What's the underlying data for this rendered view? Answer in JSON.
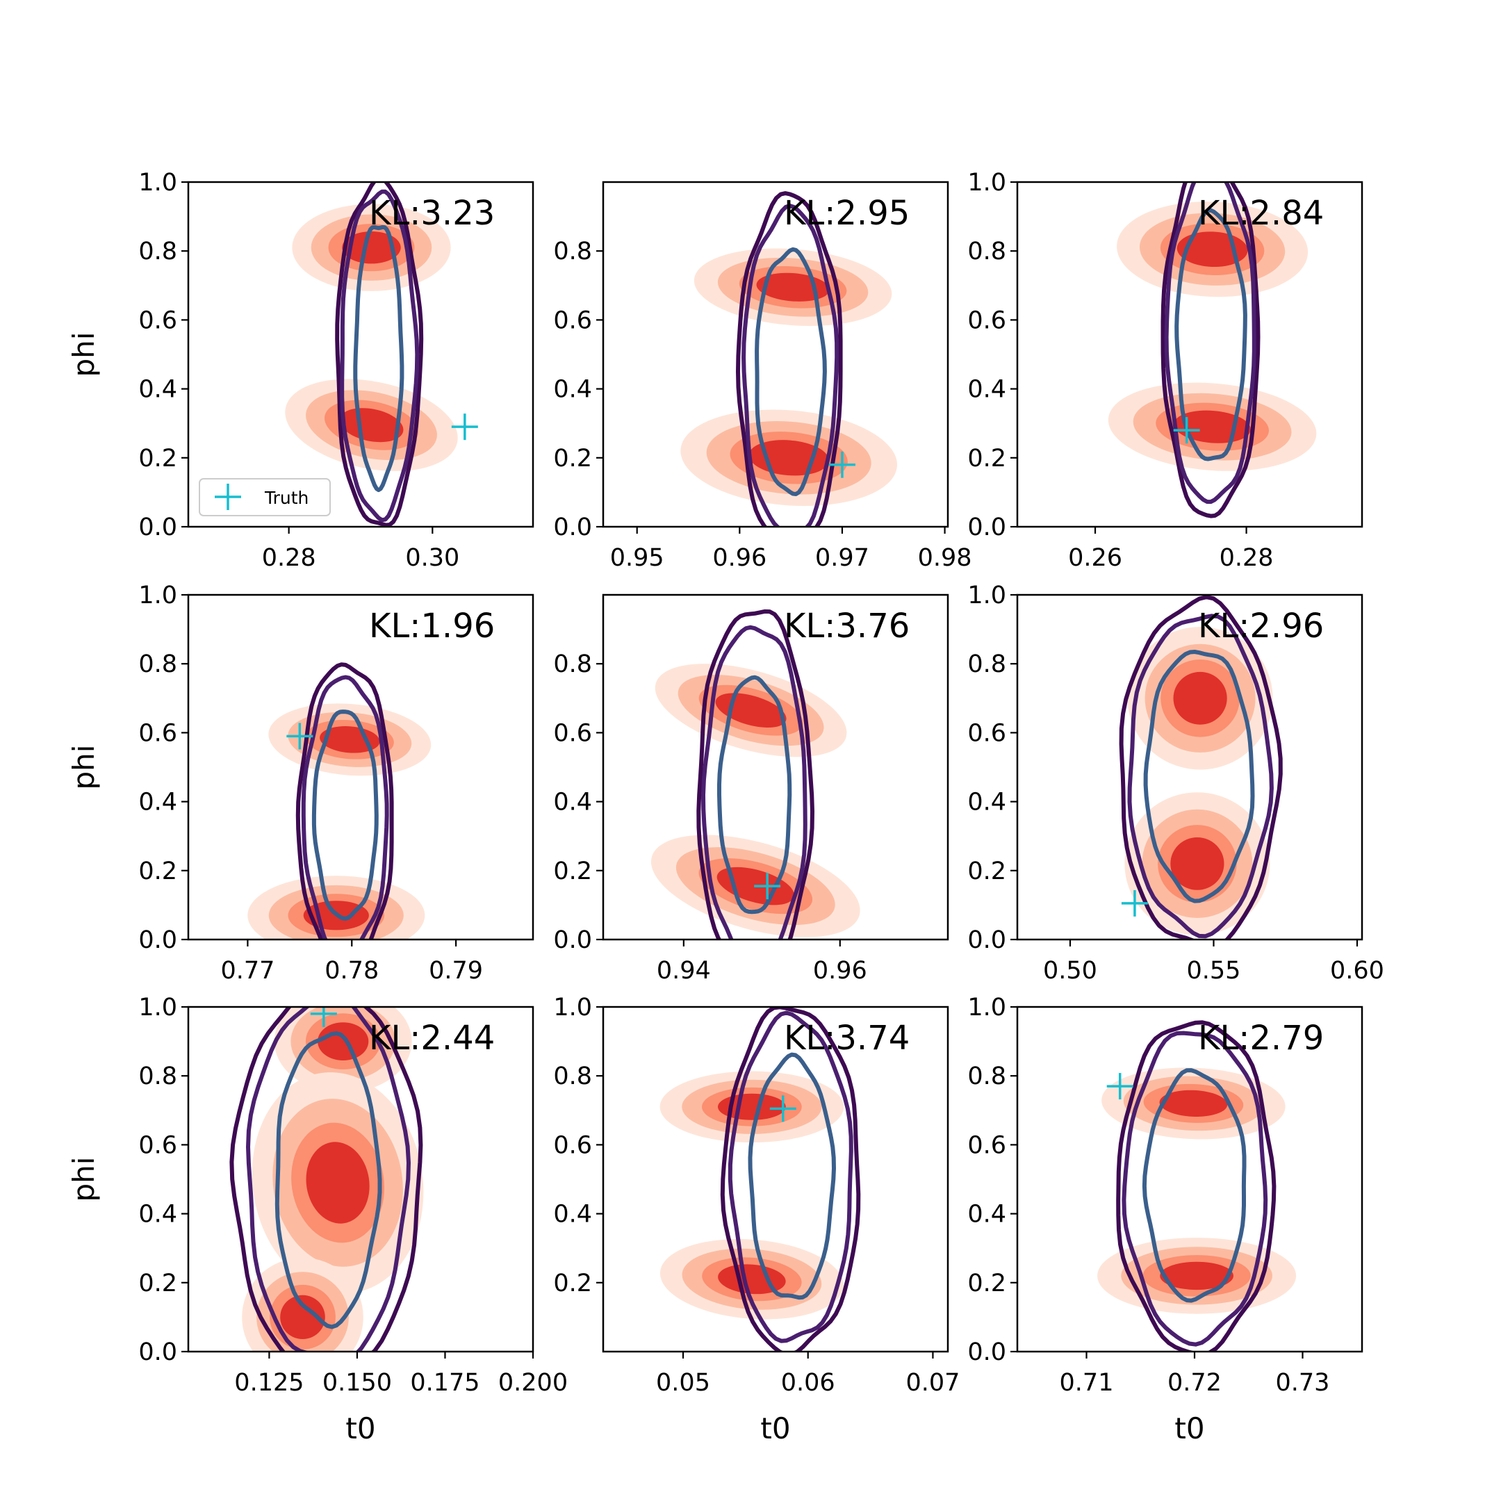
{
  "colors": {
    "kde_fill_levels": [
      "#fee4d8",
      "#fcbba1",
      "#fb8f70",
      "#e0302a"
    ],
    "contour_outer": "#3d0a52",
    "contour_middle": "#4a1f6f",
    "contour_inner": "#3a5f8c",
    "truth_marker": "#17becf"
  },
  "legend": {
    "label": "Truth",
    "marker": "plus"
  },
  "chart_data": [
    {
      "type": "contour",
      "title": "KL:3.23",
      "xlabel": "",
      "ylabel": "phi",
      "xlim": [
        0.266,
        0.314
      ],
      "ylim": [
        0,
        1
      ],
      "xticks": [
        0.28,
        0.3
      ],
      "xtick_labels": [
        "0.28",
        "0.30"
      ],
      "yticks": [
        0,
        0.2,
        0.4,
        0.6,
        0.8,
        1.0
      ],
      "ytick_labels": [
        "0.0",
        "0.2",
        "0.4",
        "0.6",
        "0.8",
        "1.0"
      ],
      "kde_modes": [
        {
          "x": 0.2915,
          "y": 0.81,
          "sx": 0.0048,
          "sy": 0.055,
          "tilt": 0.0
        },
        {
          "x": 0.2915,
          "y": 0.295,
          "sx": 0.0053,
          "sy": 0.055,
          "tilt": -0.25
        }
      ],
      "contour_center": [
        0.2925,
        0.5
      ],
      "contour_halfwidths": [
        0.0032,
        0.0052,
        0.0058
      ],
      "contour_halfheights": [
        0.38,
        0.47,
        0.5
      ],
      "truth": {
        "x": 0.3045,
        "y": 0.29
      },
      "legend": true
    },
    {
      "type": "contour",
      "title": "KL:2.95",
      "xlabel": "",
      "ylabel": "",
      "xlim": [
        0.9467,
        0.9803
      ],
      "ylim": [
        0,
        1
      ],
      "xticks": [
        0.95,
        0.96,
        0.97,
        0.98
      ],
      "xtick_labels": [
        "0.95",
        "0.96",
        "0.97",
        "0.98"
      ],
      "yticks": [
        0,
        0.2,
        0.4,
        0.6,
        0.8
      ],
      "ytick_labels": [
        "0.0",
        "0.2",
        "0.4",
        "0.6",
        "0.8"
      ],
      "kde_modes": [
        {
          "x": 0.9652,
          "y": 0.695,
          "sx": 0.0042,
          "sy": 0.048,
          "tilt": -0.1
        },
        {
          "x": 0.9648,
          "y": 0.2,
          "sx": 0.0046,
          "sy": 0.06,
          "tilt": -0.1
        }
      ],
      "contour_center": [
        0.9649,
        0.45
      ],
      "contour_halfwidths": [
        0.0033,
        0.0045,
        0.005
      ],
      "contour_halfheights": [
        0.35,
        0.47,
        0.51
      ],
      "truth": {
        "x": 0.97,
        "y": 0.18
      },
      "legend": false
    },
    {
      "type": "contour",
      "title": "KL:2.84",
      "xlabel": "",
      "ylabel": "",
      "xlim": [
        0.2497,
        0.2953
      ],
      "ylim": [
        0,
        1
      ],
      "xticks": [
        0.26,
        0.28
      ],
      "xtick_labels": [
        "0.26",
        "0.28"
      ],
      "yticks": [
        0,
        0.2,
        0.4,
        0.6,
        0.8,
        1.0
      ],
      "ytick_labels": [
        "0.0",
        "0.2",
        "0.4",
        "0.6",
        "0.8",
        "1.0"
      ],
      "kde_modes": [
        {
          "x": 0.2755,
          "y": 0.805,
          "sx": 0.0055,
          "sy": 0.06,
          "tilt": -0.05
        },
        {
          "x": 0.2755,
          "y": 0.29,
          "sx": 0.006,
          "sy": 0.055,
          "tilt": -0.1
        }
      ],
      "contour_center": [
        0.2753,
        0.55
      ],
      "contour_halfwidths": [
        0.0045,
        0.0058,
        0.0063
      ],
      "contour_halfheights": [
        0.36,
        0.48,
        0.52
      ],
      "truth": {
        "x": 0.2721,
        "y": 0.28
      },
      "legend": false
    },
    {
      "type": "contour",
      "title": "KL:1.96",
      "xlabel": "",
      "ylabel": "phi",
      "xlim": [
        0.7643,
        0.7974
      ],
      "ylim": [
        0,
        1
      ],
      "xticks": [
        0.77,
        0.78,
        0.79
      ],
      "xtick_labels": [
        "0.77",
        "0.78",
        "0.79"
      ],
      "yticks": [
        0,
        0.2,
        0.4,
        0.6,
        0.8,
        1.0
      ],
      "ytick_labels": [
        "0.0",
        "0.2",
        "0.4",
        "0.6",
        "0.8",
        "1.0"
      ],
      "kde_modes": [
        {
          "x": 0.7798,
          "y": 0.58,
          "sx": 0.0034,
          "sy": 0.045,
          "tilt": -0.1
        },
        {
          "x": 0.7785,
          "y": 0.07,
          "sx": 0.0037,
          "sy": 0.05,
          "tilt": 0.0
        }
      ],
      "contour_center": [
        0.7794,
        0.36
      ],
      "contour_halfwidths": [
        0.003,
        0.004,
        0.0045
      ],
      "contour_halfheights": [
        0.3,
        0.4,
        0.44
      ],
      "truth": {
        "x": 0.775,
        "y": 0.59
      },
      "legend": false
    },
    {
      "type": "contour",
      "title": "KL:3.76",
      "xlabel": "",
      "ylabel": "",
      "xlim": [
        0.9297,
        0.9738
      ],
      "ylim": [
        0,
        1
      ],
      "xticks": [
        0.94,
        0.96
      ],
      "xtick_labels": [
        "0.94",
        "0.96"
      ],
      "yticks": [
        0,
        0.2,
        0.4,
        0.6,
        0.8
      ],
      "ytick_labels": [
        "0.0",
        "0.2",
        "0.4",
        "0.6",
        "0.8"
      ],
      "kde_modes": [
        {
          "x": 0.9486,
          "y": 0.665,
          "sx": 0.0055,
          "sy": 0.05,
          "tilt": -0.35
        },
        {
          "x": 0.9492,
          "y": 0.155,
          "sx": 0.006,
          "sy": 0.055,
          "tilt": -0.35
        }
      ],
      "contour_center": [
        0.9491,
        0.42
      ],
      "contour_halfwidths": [
        0.0045,
        0.0065,
        0.0072
      ],
      "contour_halfheights": [
        0.34,
        0.49,
        0.54
      ],
      "truth": {
        "x": 0.9507,
        "y": 0.155
      },
      "legend": false
    },
    {
      "type": "contour",
      "title": "KL:2.96",
      "xlabel": "",
      "ylabel": "",
      "xlim": [
        0.4816,
        0.6017
      ],
      "ylim": [
        0,
        1
      ],
      "xticks": [
        0.5,
        0.55,
        0.6
      ],
      "xtick_labels": [
        "0.50",
        "0.55",
        "0.60"
      ],
      "yticks": [
        0,
        0.2,
        0.4,
        0.6,
        0.8,
        1.0
      ],
      "ytick_labels": [
        "0.0",
        "0.2",
        "0.4",
        "0.6",
        "0.8",
        "1.0"
      ],
      "kde_modes": [
        {
          "x": 0.5453,
          "y": 0.7,
          "sx": 0.011,
          "sy": 0.09,
          "tilt": 0.0
        },
        {
          "x": 0.5443,
          "y": 0.22,
          "sx": 0.011,
          "sy": 0.09,
          "tilt": 0.0
        }
      ],
      "contour_center": [
        0.545,
        0.48
      ],
      "contour_halfwidths": [
        0.0185,
        0.0245,
        0.0275
      ],
      "contour_halfheights": [
        0.36,
        0.46,
        0.5
      ],
      "truth": {
        "x": 0.5225,
        "y": 0.105
      },
      "legend": false
    },
    {
      "type": "contour",
      "title": "KL:2.44",
      "xlabel": "t0",
      "ylabel": "phi",
      "xlim": [
        0.102,
        0.2
      ],
      "ylim": [
        0,
        1
      ],
      "xticks": [
        0.125,
        0.15,
        0.175,
        0.2
      ],
      "xtick_labels": [
        "0.125",
        "0.150",
        "0.175",
        "0.200"
      ],
      "yticks": [
        0,
        0.2,
        0.4,
        0.6,
        0.8,
        1.0
      ],
      "ytick_labels": [
        "0.0",
        "0.2",
        "0.4",
        "0.6",
        "0.8",
        "1.0"
      ],
      "kde_modes": [
        {
          "x": 0.146,
          "y": 0.9,
          "sx": 0.0085,
          "sy": 0.065,
          "tilt": 0.0
        },
        {
          "x": 0.1445,
          "y": 0.49,
          "sx": 0.0105,
          "sy": 0.14,
          "tilt": 0.2
        },
        {
          "x": 0.1345,
          "y": 0.1,
          "sx": 0.0075,
          "sy": 0.075,
          "tilt": 0.0
        }
      ],
      "contour_center": [
        0.1415,
        0.5
      ],
      "contour_halfwidths": [
        0.0145,
        0.0225,
        0.0265
      ],
      "contour_halfheights": [
        0.42,
        0.53,
        0.56
      ],
      "truth": {
        "x": 0.1405,
        "y": 0.98
      },
      "legend": false
    },
    {
      "type": "contour",
      "title": "KL:3.74",
      "xlabel": "t0",
      "ylabel": "",
      "xlim": [
        0.0436,
        0.0712
      ],
      "ylim": [
        0,
        1
      ],
      "xticks": [
        0.05,
        0.06,
        0.07
      ],
      "xtick_labels": [
        "0.05",
        "0.06",
        "0.07"
      ],
      "yticks": [
        0.2,
        0.4,
        0.6,
        0.8,
        1.0
      ],
      "ytick_labels": [
        "0.2",
        "0.4",
        "0.6",
        "0.8",
        "1.0"
      ],
      "kde_modes": [
        {
          "x": 0.0555,
          "y": 0.71,
          "sx": 0.0032,
          "sy": 0.045,
          "tilt": 0.0
        },
        {
          "x": 0.0555,
          "y": 0.21,
          "sx": 0.0032,
          "sy": 0.05,
          "tilt": -0.1
        }
      ],
      "contour_center": [
        0.0587,
        0.5
      ],
      "contour_halfwidths": [
        0.0033,
        0.0048,
        0.0054
      ],
      "contour_halfheights": [
        0.35,
        0.47,
        0.5
      ],
      "truth": {
        "x": 0.058,
        "y": 0.705
      },
      "legend": false
    },
    {
      "type": "contour",
      "title": "KL:2.79",
      "xlabel": "t0",
      "ylabel": "",
      "xlim": [
        0.7036,
        0.7355
      ],
      "ylim": [
        0,
        1
      ],
      "xticks": [
        0.71,
        0.72,
        0.73
      ],
      "xtick_labels": [
        "0.71",
        "0.72",
        "0.73"
      ],
      "yticks": [
        0,
        0.2,
        0.4,
        0.6,
        0.8,
        1.0
      ],
      "ytick_labels": [
        "0.0",
        "0.2",
        "0.4",
        "0.6",
        "0.8",
        "1.0"
      ],
      "kde_modes": [
        {
          "x": 0.7199,
          "y": 0.72,
          "sx": 0.0037,
          "sy": 0.045,
          "tilt": -0.05
        },
        {
          "x": 0.7202,
          "y": 0.22,
          "sx": 0.004,
          "sy": 0.048,
          "tilt": 0.0
        }
      ],
      "contour_center": [
        0.7201,
        0.48
      ],
      "contour_halfwidths": [
        0.0046,
        0.0065,
        0.0072
      ],
      "contour_halfheights": [
        0.33,
        0.45,
        0.48
      ],
      "truth": {
        "x": 0.7131,
        "y": 0.77
      },
      "legend": false
    }
  ]
}
